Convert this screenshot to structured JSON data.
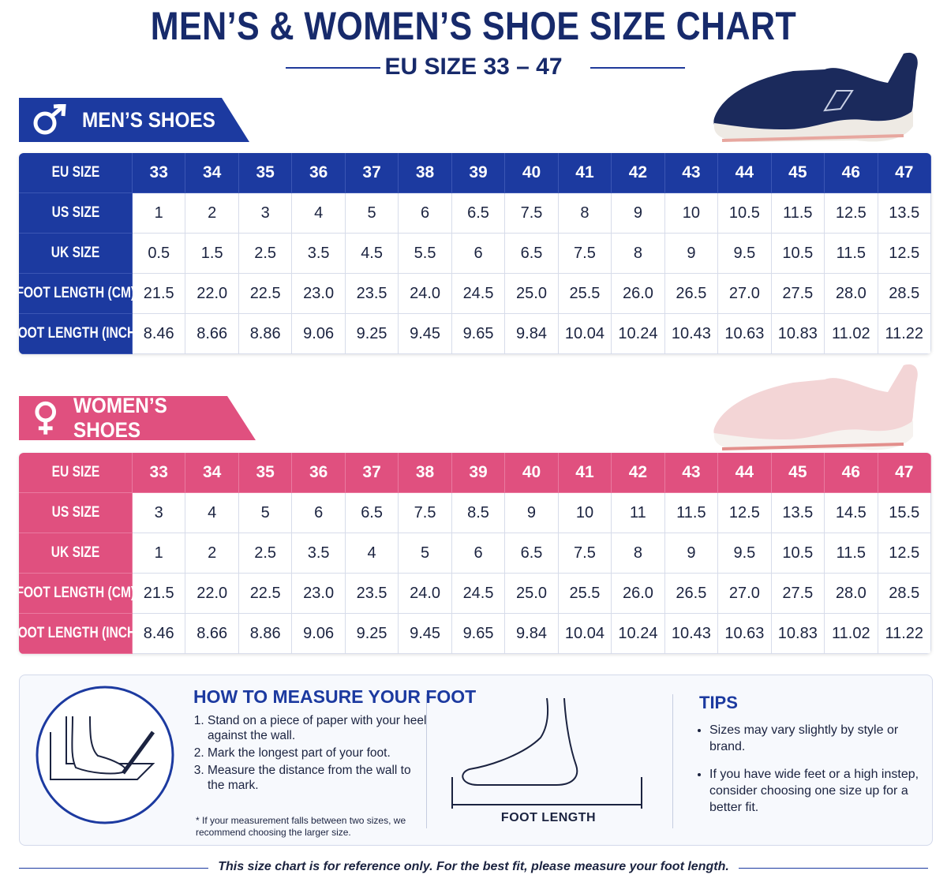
{
  "header": {
    "title": "MEN’S & WOMEN’S SHOE SIZE CHART",
    "subtitle": "EU SIZE 33 – 47"
  },
  "mens": {
    "label": "MEN’S SHOES",
    "rows": [
      {
        "label": "EU SIZE",
        "cells": [
          "33",
          "34",
          "35",
          "36",
          "37",
          "38",
          "39",
          "40",
          "41",
          "42",
          "43",
          "44",
          "45",
          "46",
          "47"
        ]
      },
      {
        "label": "US SIZE",
        "cells": [
          "1",
          "2",
          "3",
          "4",
          "5",
          "6",
          "6.5",
          "7.5",
          "8",
          "9",
          "10",
          "10.5",
          "11.5",
          "12.5",
          "13.5"
        ]
      },
      {
        "label": "UK SIZE",
        "cells": [
          "0.5",
          "1.5",
          "2.5",
          "3.5",
          "4.5",
          "5.5",
          "6",
          "6.5",
          "7.5",
          "8",
          "9",
          "9.5",
          "10.5",
          "11.5",
          "12.5"
        ]
      },
      {
        "label": "FOOT LENGTH (CM)",
        "cells": [
          "21.5",
          "22.0",
          "22.5",
          "23.0",
          "23.5",
          "24.0",
          "24.5",
          "25.0",
          "25.5",
          "26.0",
          "26.5",
          "27.0",
          "27.5",
          "28.0",
          "28.5"
        ]
      },
      {
        "label": "FOOT LENGTH (INCH)",
        "cells": [
          "8.46",
          "8.66",
          "8.86",
          "9.06",
          "9.25",
          "9.45",
          "9.65",
          "9.84",
          "10.04",
          "10.24",
          "10.43",
          "10.63",
          "10.83",
          "11.02",
          "11.22"
        ]
      }
    ]
  },
  "womens": {
    "label": "WOMEN’S SHOES",
    "rows": [
      {
        "label": "EU SIZE",
        "cells": [
          "33",
          "34",
          "35",
          "36",
          "37",
          "38",
          "39",
          "40",
          "41",
          "42",
          "43",
          "44",
          "45",
          "46",
          "47"
        ]
      },
      {
        "label": "US SIZE",
        "cells": [
          "3",
          "4",
          "5",
          "6",
          "6.5",
          "7.5",
          "8.5",
          "9",
          "10",
          "11",
          "11.5",
          "12.5",
          "13.5",
          "14.5",
          "15.5"
        ]
      },
      {
        "label": "UK SIZE",
        "cells": [
          "1",
          "2",
          "2.5",
          "3.5",
          "4",
          "5",
          "6",
          "6.5",
          "7.5",
          "8",
          "9",
          "9.5",
          "10.5",
          "11.5",
          "12.5"
        ]
      },
      {
        "label": "FOOT LENGTH (CM)",
        "cells": [
          "21.5",
          "22.0",
          "22.5",
          "23.0",
          "23.5",
          "24.0",
          "24.5",
          "25.0",
          "25.5",
          "26.0",
          "26.5",
          "27.0",
          "27.5",
          "28.0",
          "28.5"
        ]
      },
      {
        "label": "FOOT LENGTH (INCH)",
        "cells": [
          "8.46",
          "8.66",
          "8.86",
          "9.06",
          "9.25",
          "9.45",
          "9.65",
          "9.84",
          "10.04",
          "10.24",
          "10.43",
          "10.63",
          "10.83",
          "11.02",
          "11.22"
        ]
      }
    ]
  },
  "measure": {
    "title": "HOW TO MEASURE YOUR FOOT",
    "steps": [
      "Stand on a piece of paper with your heel against the wall.",
      "Mark the longest part of your foot.",
      "Measure the distance from the wall to the mark."
    ],
    "note": "* If your measurement falls between two sizes, we recommend choosing the larger size.",
    "diagram_label": "FOOT LENGTH"
  },
  "tips": {
    "title": "TIPS",
    "items": [
      "Sizes may vary slightly by style or brand.",
      "If you have wide feet or a high instep, consider choosing one size up for a better fit."
    ]
  },
  "footer": "This size chart is for reference only. For the best fit, please measure your foot length."
}
